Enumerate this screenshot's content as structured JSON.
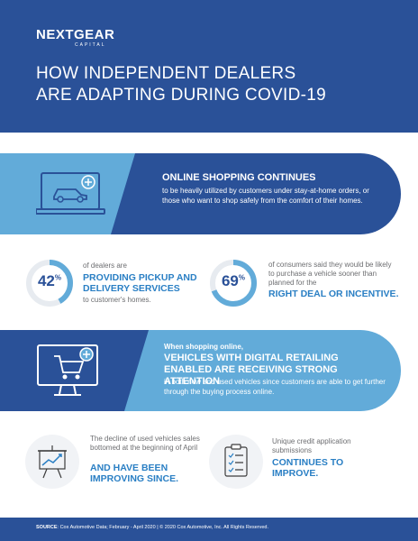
{
  "header": {
    "logo": "NEXTGEAR",
    "logo_sub": "CAPITAL",
    "title_line1": "HOW INDEPENDENT DEALERS",
    "title_line2": "ARE ADAPTING DURING COVID-19"
  },
  "online_shopping": {
    "headline": "ONLINE SHOPPING CONTINUES",
    "body": "to be heavily utilized by customers under stay-at-home orders, or those who want to shop safely from the comfort of their homes.",
    "icon": "laptop-car-icon"
  },
  "stat_pickup": {
    "percent": "42",
    "percent_sign": "%",
    "value": 42,
    "intro": "of dealers are",
    "highlight": "PROVIDING PICKUP AND DELIVERY SERVICES",
    "outro": "to customer's homes."
  },
  "stat_deal": {
    "percent": "69",
    "percent_sign": "%",
    "value": 69,
    "intro": "of consumers said they would be likely to purchase a vehicle sooner than planned for the",
    "highlight": "RIGHT DEAL OR INCENTIVE."
  },
  "digital_retailing": {
    "lead": "When shopping online,",
    "headline": "VEHICLES WITH DIGITAL RETAILING ENABLED ARE RECEIVING STRONG ATTENTION",
    "body": "in both new and used vehicles since customers are able to get further through the buying process online.",
    "icon": "monitor-cart-icon"
  },
  "used_sales": {
    "intro": "The decline of used vehicles sales bottomed at the beginning of April",
    "highlight": "AND HAVE BEEN IMPROVING SINCE.",
    "icon": "chart-board-icon"
  },
  "credit": {
    "intro": "Unique credit application submissions",
    "highlight": "CONTINUES TO IMPROVE.",
    "icon": "clipboard-icon"
  },
  "footer": {
    "source_label": "SOURCE",
    "source_text": ": Cox Automotive Data; February - April 2020  |  © 2020 Cox Automotive, Inc. All Rights Reserved."
  },
  "colors": {
    "dark_blue": "#2a5198",
    "light_blue": "#62abd9",
    "accent_blue": "#2a7fc4",
    "gray_text": "#6d6e71"
  }
}
